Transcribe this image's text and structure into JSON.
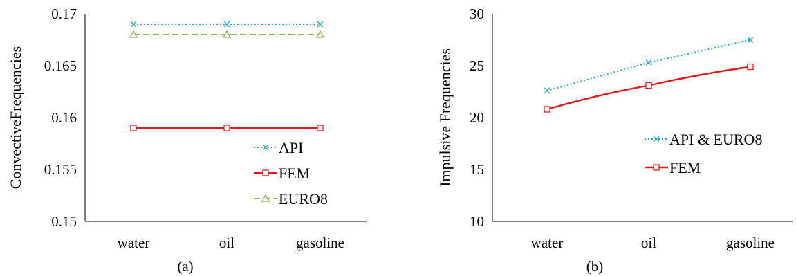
{
  "chart_data": [
    {
      "type": "line",
      "title": "",
      "caption": "(a)",
      "xlabel": "",
      "ylabel": "ConvectiveFrequencies",
      "categories": [
        "water",
        "oil",
        "gasoline"
      ],
      "ylim": [
        0.15,
        0.17
      ],
      "yticks": [
        "0.15",
        "0.155",
        "0.16",
        "0.165",
        "0.17"
      ],
      "grid": false,
      "legend_position": "bottom-right",
      "series": [
        {
          "name": "API",
          "values": [
            0.169,
            0.169,
            0.169
          ],
          "color": "#19a9d6",
          "dash": "dotted",
          "marker": "x"
        },
        {
          "name": "FEM",
          "values": [
            0.159,
            0.159,
            0.159
          ],
          "color": "#e8191a",
          "dash": "solid",
          "marker": "square"
        },
        {
          "name": "EURO8",
          "values": [
            0.168,
            0.168,
            0.168
          ],
          "color": "#8db84a",
          "dash": "dashed",
          "marker": "triangle"
        }
      ]
    },
    {
      "type": "line",
      "title": "",
      "caption": "(b)",
      "xlabel": "",
      "ylabel": "Impulsive Frequencies",
      "categories": [
        "water",
        "oil",
        "gasoline"
      ],
      "ylim": [
        10,
        30
      ],
      "yticks": [
        "10",
        "15",
        "20",
        "25",
        "30"
      ],
      "grid": false,
      "legend_position": "right",
      "series": [
        {
          "name": "API & EURO8",
          "values": [
            22.6,
            25.3,
            27.5
          ],
          "color": "#19a9d6",
          "dash": "dotted",
          "marker": "x"
        },
        {
          "name": "FEM",
          "values": [
            20.8,
            23.1,
            24.9
          ],
          "color": "#e8191a",
          "dash": "solid",
          "marker": "square"
        }
      ]
    }
  ]
}
